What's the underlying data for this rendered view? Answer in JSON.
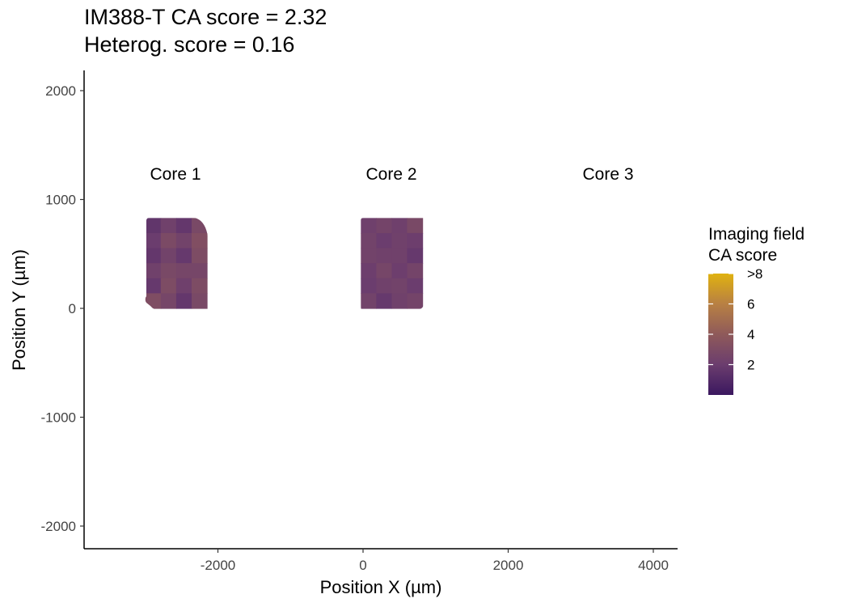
{
  "title": "IM388-T  CA score = 2.32",
  "subtitle": "Heterog. score = 0.16",
  "chart_data": {
    "type": "heatmap",
    "xlabel": "Position X (µm)",
    "ylabel": "Position Y (µm)",
    "xlim": [
      -3850,
      4300
    ],
    "ylim": [
      -2200,
      2000
    ],
    "x_ticks": [
      -2000,
      0,
      2000,
      4000
    ],
    "x_tick_labels": [
      "-2000",
      "0",
      "2000",
      "4000"
    ],
    "y_ticks": [
      2000,
      1000,
      0,
      -1000,
      -2000
    ],
    "y_tick_labels": [
      "2000",
      "1000",
      "0",
      "-1000",
      "-2000"
    ],
    "grid": false,
    "legend_position": "right",
    "legend": {
      "title_line1": "Imaging field",
      "title_line2": "CA score",
      "ticks": [
        8,
        6,
        4,
        2
      ],
      "tick_labels": [
        ">8",
        "6",
        "4",
        "2"
      ],
      "min": 0,
      "max": 8,
      "colors": [
        "#3b185f",
        "#6b3d6e",
        "#8f5a5a",
        "#b88043",
        "#e0b210"
      ]
    },
    "cores": [
      {
        "label": "Core 1",
        "label_position": [
          -2580,
          1240
        ],
        "x_range": [
          -3000,
          -2150
        ],
        "y_range": [
          0,
          830
        ],
        "fields": [
          [
            1.6,
            2.3,
            1.7,
            2.8
          ],
          [
            2.0,
            2.9,
            2.4,
            3.2
          ],
          [
            1.7,
            2.4,
            1.8,
            3.0
          ],
          [
            2.3,
            2.8,
            2.6,
            2.6
          ],
          [
            1.8,
            3.0,
            2.2,
            3.0
          ],
          [
            3.1,
            2.6,
            1.7,
            2.8
          ]
        ]
      },
      {
        "label": "Core 2",
        "label_position": [
          400,
          1240
        ],
        "x_range": [
          -30,
          820
        ],
        "y_range": [
          0,
          830
        ],
        "fields": [
          [
            2.2,
            2.5,
            2.2,
            2.8
          ],
          [
            2.4,
            2.0,
            2.3,
            2.1
          ],
          [
            2.4,
            2.3,
            2.3,
            1.8
          ],
          [
            2.1,
            2.6,
            2.1,
            2.5
          ],
          [
            2.0,
            2.3,
            2.4,
            2.0
          ],
          [
            2.4,
            1.8,
            2.3,
            2.5
          ]
        ]
      },
      {
        "label": "Core 3",
        "label_position": [
          3380,
          1240
        ],
        "fields": []
      }
    ]
  }
}
